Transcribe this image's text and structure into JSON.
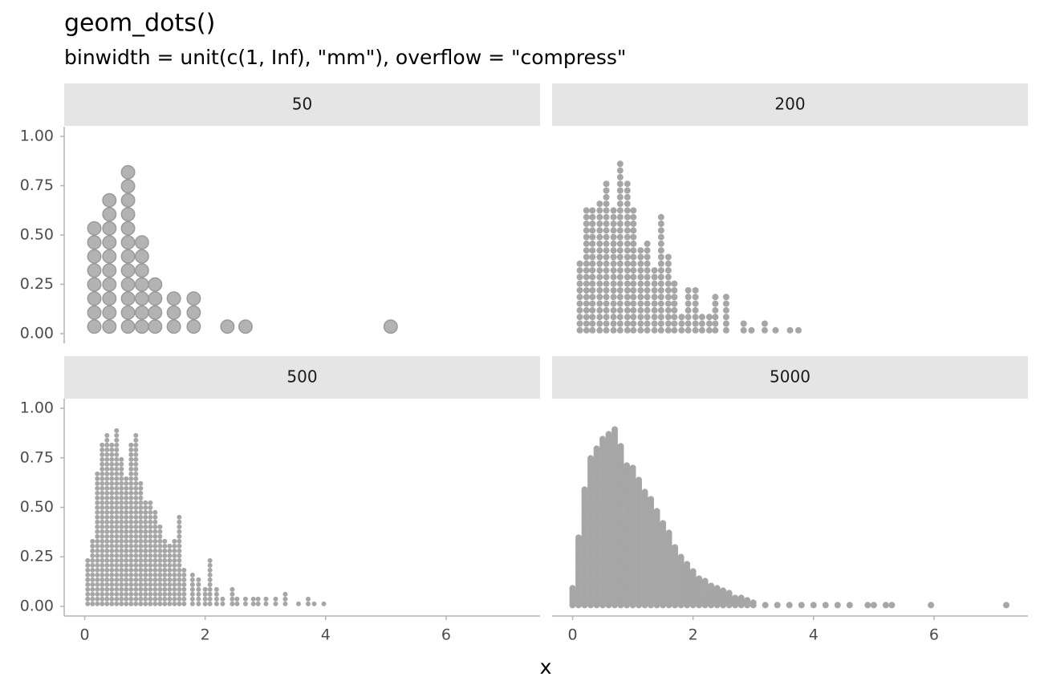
{
  "chart_data": {
    "type": "dots",
    "title": "geom_dots()",
    "subtitle": "binwidth = unit(c(1, Inf), \"mm\"), overflow = \"compress\"",
    "xlabel": "x",
    "color": "#a6a6a6",
    "xlim": [
      -0.34,
      7.56
    ],
    "xticks": [
      0,
      2,
      4,
      6
    ],
    "ylim": [
      -0.049,
      1.049
    ],
    "yticks": [
      {
        "value": 0,
        "label": "0.00"
      },
      {
        "value": 0.25,
        "label": "0.25"
      },
      {
        "value": 0.5,
        "label": "0.50"
      },
      {
        "value": 0.75,
        "label": "0.75"
      },
      {
        "value": 1,
        "label": "1.00"
      }
    ],
    "facets": [
      {
        "name": "50",
        "x": [
          0.16,
          0.41,
          0.72,
          0.95,
          1.17,
          1.48,
          1.81,
          2.37,
          2.67,
          5.08
        ],
        "counts": [
          8,
          10,
          12,
          7,
          4,
          3,
          3,
          1,
          1,
          1
        ]
      },
      {
        "name": "200",
        "x": [
          0.12,
          0.23,
          0.33,
          0.45,
          0.56,
          0.68,
          0.79,
          0.91,
          1.01,
          1.13,
          1.24,
          1.36,
          1.47,
          1.59,
          1.69,
          1.81,
          1.92,
          2.04,
          2.15,
          2.27,
          2.37,
          2.55,
          2.84,
          2.97,
          3.19,
          3.37,
          3.61,
          3.75
        ],
        "counts": [
          11,
          19,
          19,
          20,
          23,
          19,
          26,
          23,
          19,
          13,
          14,
          10,
          18,
          12,
          8,
          3,
          7,
          7,
          3,
          3,
          6,
          6,
          2,
          1,
          2,
          1,
          1,
          1
        ]
      },
      {
        "name": "500",
        "x": [
          0.05,
          0.13,
          0.21,
          0.29,
          0.37,
          0.45,
          0.53,
          0.61,
          0.69,
          0.77,
          0.85,
          0.93,
          1.01,
          1.09,
          1.17,
          1.25,
          1.33,
          1.41,
          1.49,
          1.57,
          1.65,
          1.79,
          1.89,
          2.0,
          2.08,
          2.19,
          2.29,
          2.45,
          2.53,
          2.67,
          2.8,
          2.88,
          3.01,
          3.17,
          3.33,
          3.55,
          3.71,
          3.81,
          3.97
        ],
        "counts": [
          10,
          14,
          28,
          34,
          36,
          34,
          37,
          31,
          27,
          34,
          36,
          26,
          22,
          22,
          20,
          17,
          14,
          13,
          14,
          19,
          8,
          7,
          6,
          4,
          10,
          4,
          2,
          4,
          2,
          2,
          2,
          2,
          2,
          2,
          3,
          1,
          2,
          1,
          1
        ]
      },
      {
        "name": "5000",
        "x": [
          0.0,
          0.1,
          0.2,
          0.3,
          0.4,
          0.5,
          0.6,
          0.7,
          0.8,
          0.9,
          1.0,
          1.1,
          1.2,
          1.3,
          1.4,
          1.5,
          1.6,
          1.7,
          1.8,
          1.9,
          2.0,
          2.1,
          2.2,
          2.3,
          2.4,
          2.5,
          2.6,
          2.7,
          2.8,
          2.9,
          3.0,
          3.2,
          3.4,
          3.6,
          3.8,
          4.0,
          4.2,
          4.4,
          4.6,
          4.9,
          5.0,
          5.2,
          5.3,
          5.95,
          7.2
        ],
        "counts": [
          8,
          29,
          49,
          62,
          66,
          70,
          72,
          74,
          67,
          59,
          58,
          53,
          48,
          45,
          40,
          35,
          31,
          25,
          21,
          18,
          15,
          12,
          11,
          9,
          8,
          7,
          6,
          4,
          4,
          3,
          2,
          1,
          1,
          1,
          1,
          1,
          1,
          1,
          1,
          1,
          1,
          1,
          1,
          1,
          1
        ]
      }
    ]
  }
}
